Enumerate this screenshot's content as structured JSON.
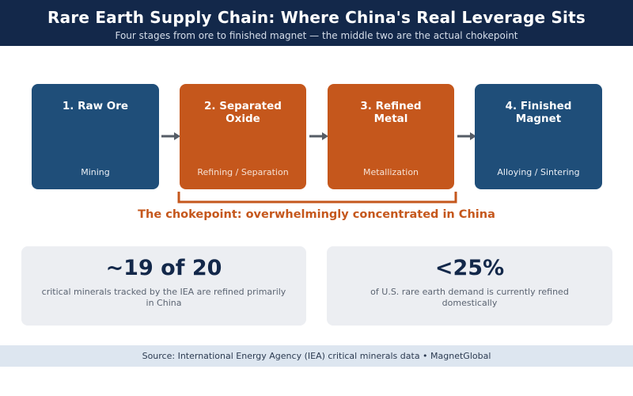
{
  "header": {
    "title": "Rare Earth Supply Chain: Where China's Real Leverage Sits",
    "subtitle": "Four stages from ore to finished magnet — the middle two are the actual chokepoint"
  },
  "stages": [
    {
      "name": "1. Raw Ore",
      "process": "Mining",
      "color": "#1f4e79"
    },
    {
      "name": "2. Separated Oxide",
      "process": "Refining / Separation",
      "color": "#c5571c"
    },
    {
      "name": "3. Refined Metal",
      "process": "Metallization",
      "color": "#c5571c"
    },
    {
      "name": "4. Finished Magnet",
      "process": "Alloying / Sintering",
      "color": "#1f4e79"
    }
  ],
  "chokepoint": {
    "label": "The chokepoint: overwhelmingly concentrated in China",
    "color": "#c5571c"
  },
  "stats": [
    {
      "value": "~19 of 20",
      "description": "critical minerals tracked by the IEA are refined primarily in China"
    },
    {
      "value": "<25%",
      "description": "of U.S. rare earth demand is currently refined domestically"
    }
  ],
  "footer": {
    "source": "Source: International Energy Agency (IEA) critical minerals data  •  MagnetGlobal"
  }
}
